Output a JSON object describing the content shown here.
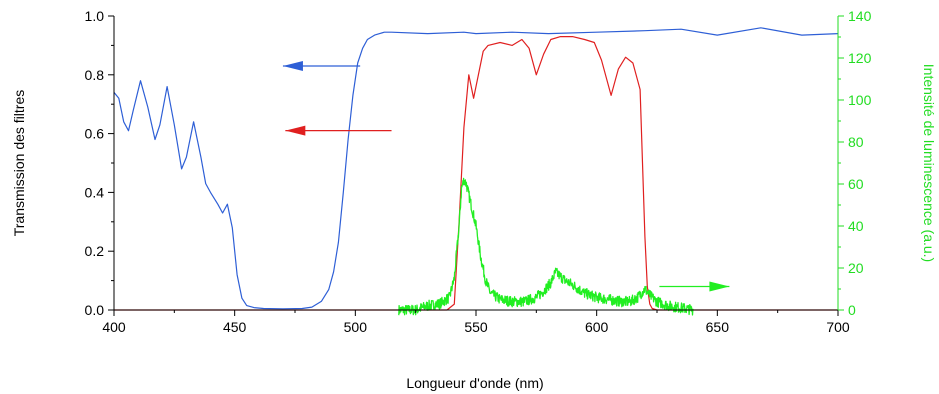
{
  "chart_data": {
    "type": "line",
    "xlabel": "Longueur d'onde (nm)",
    "ylabel_left": "Transmission des filtres",
    "ylabel_right": "Intensité de luminescence (a.u.)",
    "xlim": [
      400,
      700
    ],
    "ylim_left": [
      0,
      1.0
    ],
    "ylim_right": [
      0,
      140
    ],
    "x_ticks": [
      400,
      450,
      500,
      550,
      600,
      650,
      700
    ],
    "y_left_ticks": [
      "0.0",
      "0.2",
      "0.4",
      "0.6",
      "0.8",
      "1.0"
    ],
    "y_right_ticks": [
      "0",
      "20",
      "40",
      "60",
      "80",
      "100",
      "120",
      "140"
    ],
    "grid": false,
    "colors": {
      "blue": "#2e5fd6",
      "red": "#e02020",
      "green": "#22ee22",
      "left_axis": "#000000",
      "right_axis": "#22dd22"
    },
    "series": [
      {
        "axis": "left",
        "color": "blue",
        "x": [
          400,
          402,
          404,
          406,
          408,
          411,
          414,
          417,
          419,
          422,
          425,
          428,
          430,
          433,
          436,
          438,
          440,
          443,
          445,
          447,
          449,
          451,
          453,
          455,
          458,
          462,
          470,
          478,
          482,
          486,
          489,
          491,
          493,
          495,
          497,
          499,
          501,
          503,
          505,
          508,
          512,
          515,
          530,
          545,
          550,
          565,
          580,
          600,
          620,
          635,
          650,
          668,
          685,
          700
        ],
        "y": [
          0.74,
          0.72,
          0.64,
          0.61,
          0.68,
          0.78,
          0.69,
          0.58,
          0.63,
          0.76,
          0.63,
          0.48,
          0.52,
          0.64,
          0.52,
          0.43,
          0.4,
          0.36,
          0.33,
          0.36,
          0.28,
          0.12,
          0.04,
          0.015,
          0.008,
          0.005,
          0.004,
          0.005,
          0.01,
          0.03,
          0.07,
          0.13,
          0.23,
          0.4,
          0.58,
          0.73,
          0.84,
          0.89,
          0.92,
          0.935,
          0.945,
          0.945,
          0.94,
          0.945,
          0.94,
          0.945,
          0.94,
          0.945,
          0.95,
          0.955,
          0.935,
          0.96,
          0.935,
          0.94
        ]
      },
      {
        "axis": "left",
        "color": "red",
        "x": [
          400,
          538,
          541,
          543,
          545,
          547,
          549,
          551,
          553,
          555,
          560,
          565,
          569,
          572,
          575,
          578,
          581,
          585,
          590,
          595,
          599,
          602,
          606,
          609,
          612,
          615,
          618,
          619,
          620,
          621,
          622,
          623,
          625,
          700
        ],
        "y": [
          0.0,
          0.0,
          0.02,
          0.3,
          0.62,
          0.8,
          0.72,
          0.8,
          0.88,
          0.9,
          0.91,
          0.9,
          0.92,
          0.89,
          0.8,
          0.87,
          0.92,
          0.93,
          0.93,
          0.92,
          0.91,
          0.85,
          0.73,
          0.82,
          0.86,
          0.84,
          0.75,
          0.5,
          0.25,
          0.08,
          0.02,
          0.005,
          0.0,
          0.0
        ]
      },
      {
        "axis": "right",
        "color": "green",
        "x": [
          518,
          525,
          530,
          535,
          539,
          541,
          543,
          544,
          545,
          546,
          547,
          548,
          550,
          552,
          554,
          556,
          560,
          565,
          570,
          575,
          578,
          581,
          583,
          585,
          587,
          590,
          595,
          600,
          605,
          610,
          614,
          617,
          620,
          622,
          625,
          630,
          635,
          640
        ],
        "y": [
          0,
          0,
          2,
          3,
          6,
          15,
          40,
          58,
          62,
          60,
          55,
          50,
          40,
          25,
          14,
          8,
          5,
          4,
          4,
          6,
          9,
          13,
          18,
          16,
          14,
          12,
          8,
          6,
          5,
          4,
          4,
          6,
          10,
          7,
          4,
          2,
          1,
          0
        ],
        "noise": 2.5
      }
    ],
    "annotations": [
      {
        "arrow": "left",
        "color": "blue",
        "x1": 470,
        "x2": 502,
        "y": 0.83,
        "axis": "left"
      },
      {
        "arrow": "left",
        "color": "red",
        "x1": 471,
        "x2": 515,
        "y": 0.61,
        "axis": "left"
      },
      {
        "arrow": "right",
        "color": "green",
        "x1": 626,
        "x2": 655,
        "y": 0.08,
        "axis": "left"
      }
    ]
  }
}
